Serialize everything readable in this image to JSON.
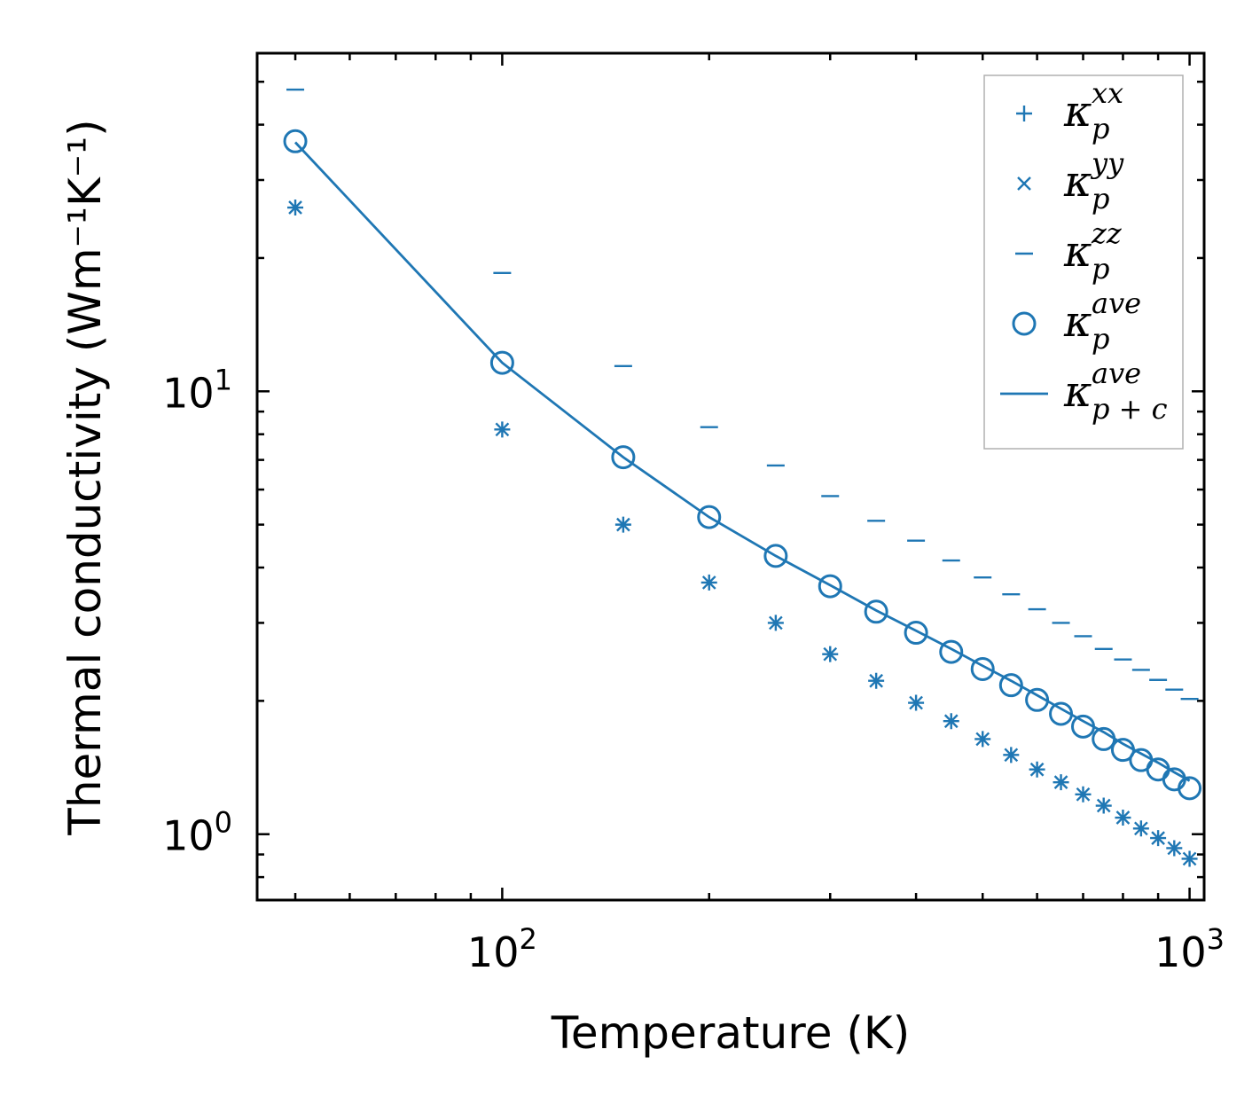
{
  "chart_data": {
    "type": "scatter",
    "xscale": "log",
    "yscale": "log",
    "xlabel": "Temperature (K)",
    "ylabel": "Thermal conductivity (Wm⁻¹K⁻¹)",
    "xlim": [
      44,
      1050
    ],
    "ylim": [
      0.71,
      58
    ],
    "x_tick_labels": [
      {
        "base": "10",
        "exp": "2",
        "value": 100
      },
      {
        "base": "10",
        "exp": "3",
        "value": 1000
      }
    ],
    "y_tick_labels": [
      {
        "base": "10",
        "exp": "0",
        "value": 1
      },
      {
        "base": "10",
        "exp": "1",
        "value": 10
      }
    ],
    "color": "#1f77b4",
    "legend_position": "top-right",
    "x": [
      50,
      100,
      150,
      200,
      250,
      300,
      350,
      400,
      450,
      500,
      550,
      600,
      650,
      700,
      750,
      800,
      850,
      900,
      950,
      1000
    ],
    "series": [
      {
        "name": "κ_p^xx",
        "base": "κ",
        "sub": "p",
        "sup": "xx",
        "marker": "plus",
        "values": [
          26.0,
          8.2,
          5.0,
          3.7,
          3.0,
          2.55,
          2.22,
          1.98,
          1.8,
          1.64,
          1.51,
          1.4,
          1.31,
          1.23,
          1.16,
          1.09,
          1.03,
          0.98,
          0.93,
          0.88
        ]
      },
      {
        "name": "κ_p^yy",
        "base": "κ",
        "sub": "p",
        "sup": "yy",
        "marker": "x",
        "values": [
          26.0,
          8.2,
          5.0,
          3.7,
          3.0,
          2.55,
          2.22,
          1.98,
          1.8,
          1.64,
          1.51,
          1.4,
          1.31,
          1.23,
          1.16,
          1.09,
          1.03,
          0.98,
          0.93,
          0.88
        ]
      },
      {
        "name": "κ_p^zz",
        "base": "κ",
        "sub": "p",
        "sup": "zz",
        "marker": "hline",
        "values": [
          48.0,
          18.5,
          11.4,
          8.3,
          6.8,
          5.8,
          5.1,
          4.6,
          4.15,
          3.8,
          3.48,
          3.22,
          3.0,
          2.8,
          2.62,
          2.48,
          2.35,
          2.23,
          2.12,
          2.02
        ]
      },
      {
        "name": "κ_p^ave",
        "base": "κ",
        "sub": "p",
        "sup": "ave",
        "marker": "circle",
        "values": [
          36.7,
          11.6,
          7.1,
          5.2,
          4.25,
          3.63,
          3.18,
          2.85,
          2.58,
          2.36,
          2.17,
          2.01,
          1.87,
          1.75,
          1.64,
          1.55,
          1.47,
          1.4,
          1.33,
          1.27
        ]
      },
      {
        "name": "κ_{p+c}^ave",
        "base": "κ",
        "sub": "p + c",
        "sup": "ave",
        "marker": "line",
        "values": [
          36.5,
          11.6,
          7.1,
          5.2,
          4.25,
          3.65,
          3.2,
          2.88,
          2.62,
          2.4,
          2.22,
          2.06,
          1.92,
          1.8,
          1.7,
          1.6,
          1.52,
          1.45,
          1.38,
          1.32
        ]
      }
    ]
  }
}
